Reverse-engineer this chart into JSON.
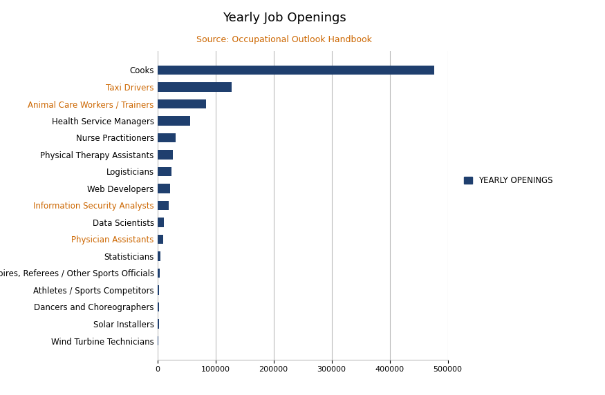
{
  "title": "Yearly Job Openings",
  "subtitle": "Source: Occupational Outlook Handbook",
  "legend_label": "YEARLY OPENINGS",
  "bar_color": "#1F3F6E",
  "categories": [
    "Cooks",
    "Taxi Drivers",
    "Animal Care Workers / Trainers",
    "Health Service Managers",
    "Nurse Practitioners",
    "Physical Therapy Assistants",
    "Logisticians",
    "Web Developers",
    "Information Security Analysts",
    "Data Scientists",
    "Physician Assistants",
    "Statisticians",
    "Umpires, Referees / Other Sports Officials",
    "Athletes / Sports Competitors",
    "Dancers and Choreographers",
    "Solar Installers",
    "Wind Turbine Technicians"
  ],
  "values": [
    476700,
    128300,
    83800,
    56700,
    31000,
    26900,
    24200,
    21900,
    19500,
    11500,
    10000,
    5000,
    3700,
    3300,
    3000,
    2700,
    2000
  ],
  "label_colors": [
    "#000000",
    "#CC6600",
    "#CC6600",
    "#000000",
    "#000000",
    "#000000",
    "#000000",
    "#000000",
    "#CC6600",
    "#000000",
    "#CC6600",
    "#000000",
    "#000000",
    "#000000",
    "#000000",
    "#000000",
    "#000000"
  ],
  "xlim": [
    0,
    500000
  ],
  "xticks": [
    0,
    100000,
    200000,
    300000,
    400000,
    500000
  ],
  "xtick_labels": [
    "0",
    "100000",
    "200000",
    "300000",
    "400000",
    "500000"
  ],
  "background_color": "#ffffff",
  "grid_color": "#bbbbbb",
  "title_fontsize": 13,
  "subtitle_fontsize": 9,
  "tick_fontsize": 8,
  "label_fontsize": 8.5,
  "subtitle_color": "#CC6600",
  "title_color": "#000000"
}
